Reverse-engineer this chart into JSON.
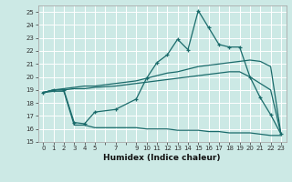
{
  "xlabel": "Humidex (Indice chaleur)",
  "bg_color": "#cce9e5",
  "grid_color": "#ffffff",
  "line_color": "#1a6b6b",
  "xlim": [
    -0.5,
    23.5
  ],
  "ylim": [
    15,
    25.5
  ],
  "xticks": [
    0,
    1,
    2,
    3,
    4,
    5,
    7,
    9,
    10,
    11,
    12,
    13,
    14,
    15,
    16,
    17,
    18,
    19,
    20,
    21,
    22,
    23
  ],
  "yticks": [
    15,
    16,
    17,
    18,
    19,
    20,
    21,
    22,
    23,
    24,
    25
  ],
  "line1_x": [
    0,
    1,
    2,
    3,
    4,
    5,
    7,
    9,
    10,
    11,
    12,
    13,
    14,
    15,
    16,
    17,
    18,
    19,
    20,
    21,
    22,
    23
  ],
  "line1_y": [
    18.8,
    19.0,
    19.0,
    16.5,
    16.4,
    17.3,
    17.5,
    18.3,
    19.9,
    21.1,
    21.7,
    22.9,
    22.1,
    25.1,
    23.8,
    22.5,
    22.3,
    22.3,
    20.0,
    18.4,
    17.1,
    15.6
  ],
  "line2_x": [
    0,
    1,
    2,
    3,
    4,
    5,
    7,
    9,
    10,
    11,
    12,
    13,
    14,
    15,
    16,
    17,
    18,
    19,
    20,
    21,
    22,
    23
  ],
  "line2_y": [
    18.8,
    19.0,
    19.1,
    19.2,
    19.3,
    19.3,
    19.5,
    19.7,
    19.9,
    20.1,
    20.3,
    20.4,
    20.6,
    20.8,
    20.9,
    21.0,
    21.1,
    21.2,
    21.3,
    21.2,
    20.8,
    15.6
  ],
  "line3_x": [
    0,
    1,
    2,
    3,
    4,
    5,
    7,
    9,
    10,
    11,
    12,
    13,
    14,
    15,
    16,
    17,
    18,
    19,
    20,
    21,
    22,
    23
  ],
  "line3_y": [
    18.8,
    19.0,
    19.0,
    19.1,
    19.1,
    19.2,
    19.3,
    19.5,
    19.6,
    19.7,
    19.8,
    19.9,
    20.0,
    20.1,
    20.2,
    20.3,
    20.4,
    20.4,
    20.0,
    19.5,
    19.0,
    15.6
  ],
  "line4_x": [
    0,
    1,
    2,
    3,
    4,
    5,
    7,
    9,
    10,
    11,
    12,
    13,
    14,
    15,
    16,
    17,
    18,
    19,
    20,
    21,
    22,
    23
  ],
  "line4_y": [
    18.8,
    18.9,
    18.9,
    16.3,
    16.3,
    16.1,
    16.1,
    16.1,
    16.0,
    16.0,
    16.0,
    15.9,
    15.9,
    15.9,
    15.8,
    15.8,
    15.7,
    15.7,
    15.7,
    15.6,
    15.5,
    15.5
  ]
}
